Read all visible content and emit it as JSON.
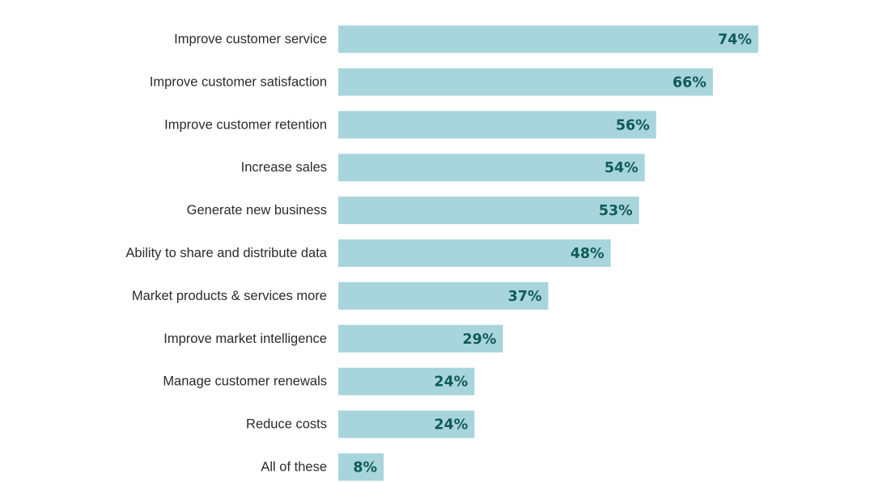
{
  "chart_data": {
    "type": "bar",
    "orientation": "horizontal",
    "title": "",
    "xlabel": "",
    "ylabel": "",
    "categories": [
      "Improve customer service",
      "Improve customer satisfaction",
      "Improve customer retention",
      "Increase sales",
      "Generate new business",
      "Ability to share and distribute data",
      "Market products & services more",
      "Improve market intelligence",
      "Manage customer renewals",
      "Reduce costs",
      "All of these"
    ],
    "values": [
      74,
      66,
      56,
      54,
      53,
      48,
      37,
      29,
      24,
      24,
      8
    ],
    "value_labels": [
      "74%",
      "66%",
      "56%",
      "54%",
      "53%",
      "48%",
      "37%",
      "29%",
      "24%",
      "24%",
      "8%"
    ],
    "unit": "%",
    "xlim": [
      0,
      74
    ],
    "grid": false,
    "legend": "none",
    "colors": {
      "bar": "#a8d5dc",
      "value_label": "#0f5c57",
      "category_label": "#2b2b2b"
    }
  }
}
